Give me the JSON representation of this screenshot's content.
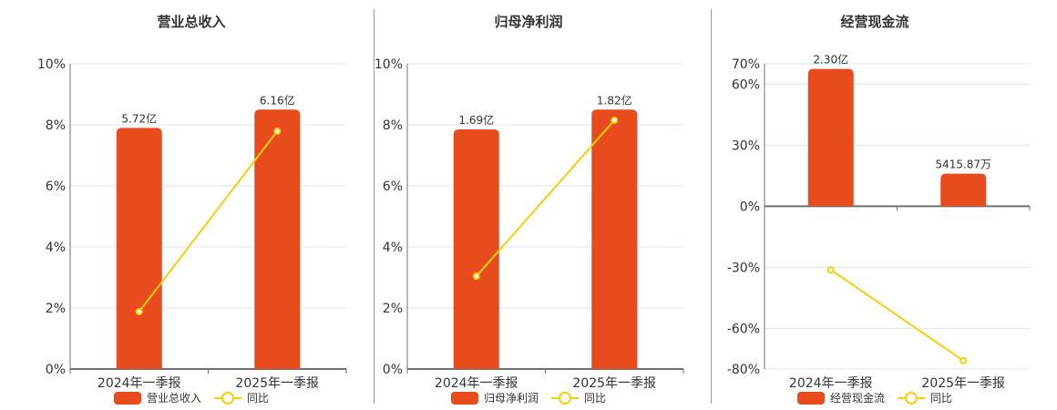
{
  "charts": [
    {
      "title": "营业总收入",
      "bar_legend": "营业总收入",
      "line_legend": "同比"
    },
    {
      "title": "归母净利润",
      "bar_legend": "归母净利润",
      "line_legend": "同比"
    },
    {
      "title": "经营现金流",
      "bar_legend": "经营现金流",
      "line_legend": "同比"
    }
  ],
  "chart_data": [
    {
      "type": "bar",
      "title": "营业总收入",
      "categories": [
        "2024年一季报",
        "2025年一季报"
      ],
      "series": [
        {
          "name": "营业总收入",
          "type": "bar",
          "labels": [
            "5.72亿",
            "6.16亿"
          ],
          "values": [
            5.72,
            6.16
          ],
          "unit": "亿",
          "bar_heights_pct": [
            7.9,
            8.5
          ]
        },
        {
          "name": "同比",
          "type": "line",
          "values": [
            1.88,
            7.79
          ],
          "unit": "%"
        }
      ],
      "yaxis": {
        "ticks": [
          "0%",
          "2%",
          "4%",
          "6%",
          "8%",
          "10%"
        ],
        "ylim": [
          0,
          10
        ]
      },
      "grid": true,
      "legend_position": "bottom",
      "colors": {
        "bar": "#e84c1c",
        "line": "#f5cf0d"
      }
    },
    {
      "type": "bar",
      "title": "归母净利润",
      "categories": [
        "2024年一季报",
        "2025年一季报"
      ],
      "series": [
        {
          "name": "归母净利润",
          "type": "bar",
          "labels": [
            "1.69亿",
            "1.82亿"
          ],
          "values": [
            1.69,
            1.82
          ],
          "unit": "亿",
          "bar_heights_pct": [
            7.85,
            8.5
          ]
        },
        {
          "name": "同比",
          "type": "line",
          "values": [
            3.04,
            8.15
          ],
          "unit": "%"
        }
      ],
      "yaxis": {
        "ticks": [
          "0%",
          "2%",
          "4%",
          "6%",
          "8%",
          "10%"
        ],
        "ylim": [
          0,
          10
        ]
      },
      "grid": true,
      "legend_position": "bottom",
      "colors": {
        "bar": "#e84c1c",
        "line": "#f5cf0d"
      }
    },
    {
      "type": "bar",
      "title": "经营现金流",
      "categories": [
        "2024年一季报",
        "2025年一季报"
      ],
      "series": [
        {
          "name": "经营现金流",
          "type": "bar",
          "labels": [
            "2.30亿",
            "5415.87万"
          ],
          "values": [
            23000,
            5415.87
          ],
          "unit": "万",
          "bar_heights_pct": [
            67.5,
            16
          ]
        },
        {
          "name": "同比",
          "type": "line",
          "values": [
            -31.3,
            -75.9
          ],
          "unit": "%"
        }
      ],
      "yaxis": {
        "ticks": [
          "-80%",
          "-60%",
          "-30%",
          "0%",
          "30%",
          "60%",
          "70%"
        ],
        "ylim": [
          -80,
          70
        ]
      },
      "grid": true,
      "legend_position": "bottom",
      "colors": {
        "bar": "#e84c1c",
        "line": "#f5cf0d"
      }
    }
  ]
}
